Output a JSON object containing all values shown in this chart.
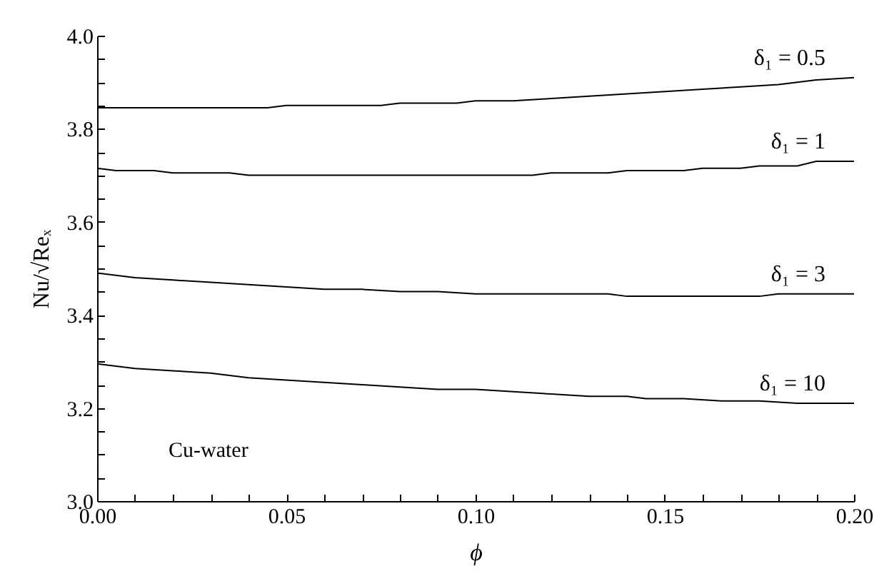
{
  "chart_data": {
    "type": "line",
    "xlabel": "ϕ",
    "ylabel": "Nu/√Reₓ",
    "annotations": [
      "Cu-water"
    ],
    "xlim": [
      0,
      0.2
    ],
    "ylim": [
      3.0,
      4.0
    ],
    "xticks": [
      {
        "value": 0,
        "label": "0.00"
      },
      {
        "value": 0.01,
        "label": null
      },
      {
        "value": 0.02,
        "label": null
      },
      {
        "value": 0.03,
        "label": null
      },
      {
        "value": 0.04,
        "label": null
      },
      {
        "value": 0.05,
        "label": "0.05"
      },
      {
        "value": 0.06,
        "label": null
      },
      {
        "value": 0.07,
        "label": null
      },
      {
        "value": 0.08,
        "label": null
      },
      {
        "value": 0.09,
        "label": null
      },
      {
        "value": 0.1,
        "label": "0.10"
      },
      {
        "value": 0.11,
        "label": null
      },
      {
        "value": 0.12,
        "label": null
      },
      {
        "value": 0.13,
        "label": null
      },
      {
        "value": 0.14,
        "label": null
      },
      {
        "value": 0.15,
        "label": "0.15"
      },
      {
        "value": 0.16,
        "label": null
      },
      {
        "value": 0.17,
        "label": null
      },
      {
        "value": 0.18,
        "label": null
      },
      {
        "value": 0.19,
        "label": null
      },
      {
        "value": 0.2,
        "label": "0.20"
      }
    ],
    "yticks": [
      {
        "value": 3.0,
        "label": "3.0"
      },
      {
        "value": 3.05,
        "label": null
      },
      {
        "value": 3.1,
        "label": null
      },
      {
        "value": 3.15,
        "label": null
      },
      {
        "value": 3.2,
        "label": "3.2"
      },
      {
        "value": 3.25,
        "label": null
      },
      {
        "value": 3.3,
        "label": null
      },
      {
        "value": 3.35,
        "label": null
      },
      {
        "value": 3.4,
        "label": "3.4"
      },
      {
        "value": 3.45,
        "label": null
      },
      {
        "value": 3.5,
        "label": null
      },
      {
        "value": 3.55,
        "label": null
      },
      {
        "value": 3.6,
        "label": "3.6"
      },
      {
        "value": 3.65,
        "label": null
      },
      {
        "value": 3.7,
        "label": null
      },
      {
        "value": 3.75,
        "label": null
      },
      {
        "value": 3.8,
        "label": "3.8"
      },
      {
        "value": 3.85,
        "label": null
      },
      {
        "value": 3.9,
        "label": null
      },
      {
        "value": 3.95,
        "label": null
      },
      {
        "value": 4.0,
        "label": "4.0"
      }
    ],
    "grid": false,
    "legend": false,
    "marker": "none",
    "line_style": "solid",
    "series": [
      {
        "name": "δ₁ = 0.5",
        "color": "#000000",
        "x": [
          0,
          0.045,
          0.05,
          0.075,
          0.08,
          0.095,
          0.1,
          0.11,
          0.12,
          0.13,
          0.14,
          0.15,
          0.16,
          0.17,
          0.18,
          0.19,
          0.2
        ],
        "values": [
          3.845,
          3.845,
          3.85,
          3.85,
          3.855,
          3.855,
          3.86,
          3.86,
          3.865,
          3.87,
          3.875,
          3.88,
          3.885,
          3.89,
          3.895,
          3.905,
          3.91
        ]
      },
      {
        "name": "δ₁ = 1",
        "color": "#000000",
        "x": [
          0,
          0.005,
          0.015,
          0.02,
          0.035,
          0.04,
          0.115,
          0.12,
          0.135,
          0.14,
          0.155,
          0.16,
          0.17,
          0.175,
          0.185,
          0.19,
          0.2
        ],
        "values": [
          3.715,
          3.71,
          3.71,
          3.705,
          3.705,
          3.7,
          3.7,
          3.705,
          3.705,
          3.71,
          3.71,
          3.715,
          3.715,
          3.72,
          3.72,
          3.73,
          3.73
        ]
      },
      {
        "name": "δ₁ = 3",
        "color": "#000000",
        "x": [
          0,
          0.01,
          0.02,
          0.03,
          0.04,
          0.05,
          0.06,
          0.07,
          0.08,
          0.09,
          0.1,
          0.135,
          0.14,
          0.175,
          0.18,
          0.2
        ],
        "values": [
          3.49,
          3.48,
          3.475,
          3.47,
          3.465,
          3.46,
          3.455,
          3.455,
          3.45,
          3.45,
          3.445,
          3.445,
          3.44,
          3.44,
          3.445,
          3.445
        ]
      },
      {
        "name": "δ₁ = 10",
        "color": "#000000",
        "x": [
          0,
          0.01,
          0.02,
          0.03,
          0.04,
          0.05,
          0.06,
          0.07,
          0.08,
          0.09,
          0.1,
          0.11,
          0.12,
          0.13,
          0.14,
          0.145,
          0.155,
          0.165,
          0.175,
          0.185,
          0.2
        ],
        "values": [
          3.295,
          3.285,
          3.28,
          3.275,
          3.265,
          3.26,
          3.255,
          3.25,
          3.245,
          3.24,
          3.24,
          3.235,
          3.23,
          3.225,
          3.225,
          3.22,
          3.22,
          3.215,
          3.215,
          3.21,
          3.21
        ]
      }
    ]
  }
}
